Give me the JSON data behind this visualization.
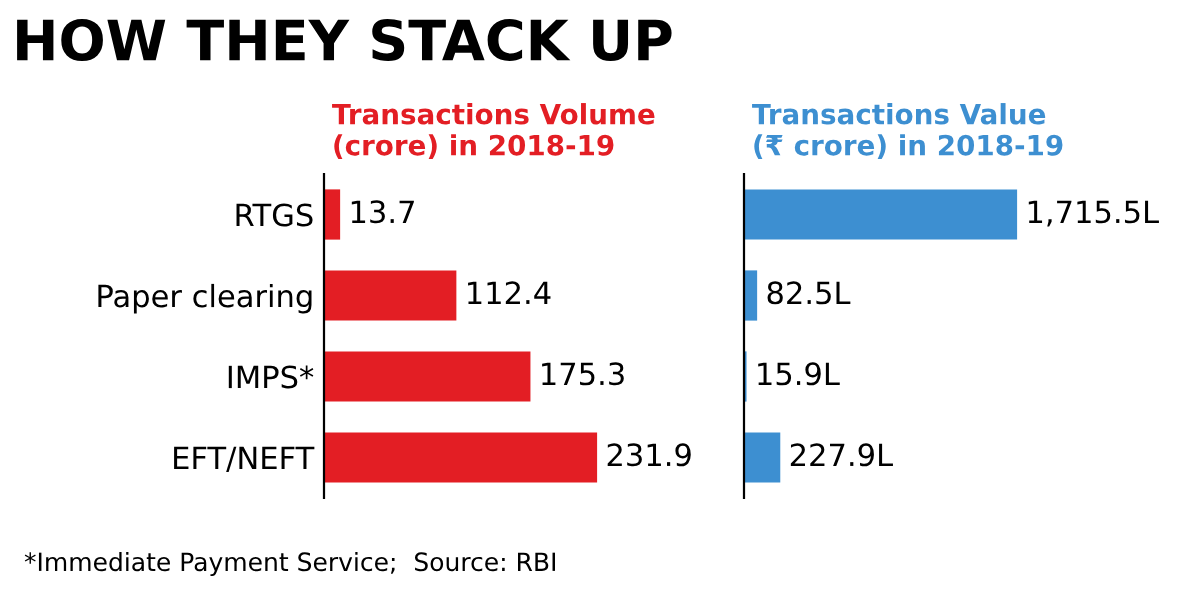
{
  "chart_data": [
    {
      "type": "bar",
      "orientation": "horizontal",
      "title": "HOW THEY STACK UP",
      "subtitle": "Transactions Volume\n(crore) in 2018-19",
      "categories": [
        "RTGS",
        "Paper clearing",
        "IMPS*",
        "EFT/NEFT"
      ],
      "values": [
        13.7,
        112.4,
        175.3,
        231.9
      ],
      "color": "#e31e24",
      "data_labels": true,
      "annotations": [
        "*Immediate Payment Service;  Source: RBI"
      ]
    },
    {
      "type": "bar",
      "orientation": "horizontal",
      "subtitle": "Transactions Value\n(₹ crore) in 2018-19",
      "categories": [
        null,
        null,
        null,
        null
      ],
      "values": [
        1715.5,
        82.5,
        15.9,
        227.9
      ],
      "color": "#3d8fd1",
      "value_labels": [
        "1,715.5L",
        "82.5L",
        "15.9L",
        "227.9L"
      ]
    }
  ]
}
